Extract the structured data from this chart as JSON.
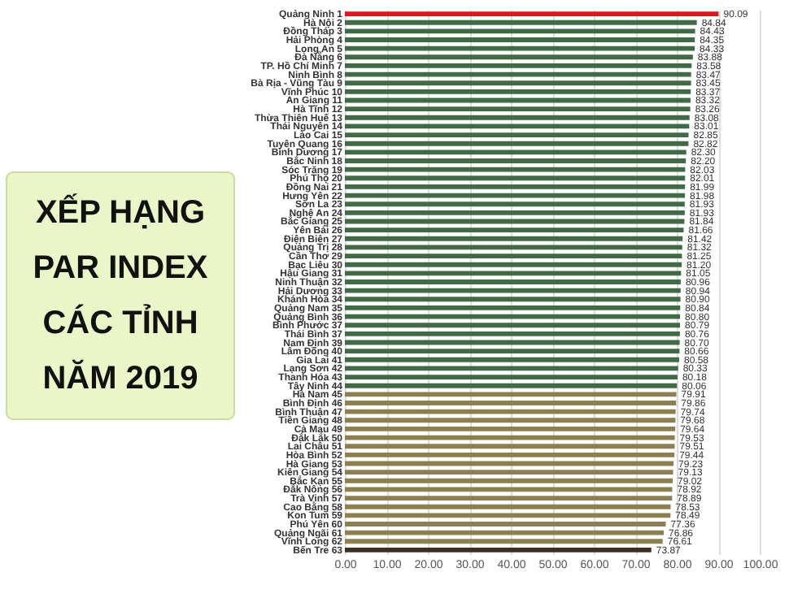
{
  "chart_data": {
    "type": "bar",
    "orientation": "horizontal",
    "title": "XẾP HẠNG\nPAR INDEX\nCÁC TỈNH\nNĂM 2019",
    "categories": [
      "Quảng Ninh 1",
      "Hà Nội 2",
      "Đồng Tháp 3",
      "Hải Phòng 4",
      "Long An 5",
      "Đà Nẵng 6",
      "TP. Hồ Chí Minh 7",
      "Ninh Bình 8",
      "Bà Rịa - Vũng Tàu 9",
      "Vĩnh Phúc 10",
      "An Giang 11",
      "Hà Tĩnh 12",
      "Thừa Thiên Huế 13",
      "Thái Nguyên 14",
      "Lào Cai 15",
      "Tuyên Quang 16",
      "Bình Dương 17",
      "Bắc Ninh 18",
      "Sóc Trăng 19",
      "Phú Thọ 20",
      "Đồng Nai 21",
      "Hưng Yên 22",
      "Sơn La 23",
      "Nghệ An 24",
      "Bắc Giang 25",
      "Yên Bái 26",
      "Điện Biên 27",
      "Quảng Trị 28",
      "Cần Thơ 29",
      "Bạc Liêu 30",
      "Hậu Giang 31",
      "Ninh Thuận 32",
      "Hải Dương 33",
      "Khánh Hòa 34",
      "Quảng Nam 35",
      "Quảng Bình 36",
      "Bình Phước 37",
      "Thái Bình 37",
      "Nam Định 39",
      "Lâm Đồng 40",
      "Gia Lai 41",
      "Lạng Sơn 42",
      "Thanh Hóa 43",
      "Tây Ninh 44",
      "Hà Nam 45",
      "Bình Định 46",
      "Bình Thuận 47",
      "Tiền Giang 48",
      "Cà Mau 49",
      "Đắk Lắk 50",
      "Lai Châu 51",
      "Hòa Bình 52",
      "Hà Giang 53",
      "Kiên Giang 54",
      "Bắc Kạn 55",
      "Đắk Nông 56",
      "Trà Vinh 57",
      "Cao Bằng 58",
      "Kon Tum 59",
      "Phú Yên 60",
      "Quảng Ngãi 61",
      "Vĩnh Long 62",
      "Bến Tre 63"
    ],
    "values": [
      90.09,
      84.84,
      84.43,
      84.35,
      84.33,
      83.88,
      83.58,
      83.47,
      83.45,
      83.37,
      83.32,
      83.26,
      83.08,
      83.01,
      82.85,
      82.82,
      82.3,
      82.2,
      82.03,
      82.01,
      81.99,
      81.98,
      81.93,
      81.93,
      81.84,
      81.66,
      81.42,
      81.32,
      81.25,
      81.2,
      81.05,
      80.96,
      80.94,
      80.9,
      80.84,
      80.8,
      80.79,
      80.76,
      80.7,
      80.66,
      80.58,
      80.33,
      80.18,
      80.06,
      79.91,
      79.86,
      79.74,
      79.68,
      79.64,
      79.53,
      79.51,
      79.44,
      79.23,
      79.13,
      79.02,
      78.92,
      78.89,
      78.53,
      78.49,
      77.36,
      76.86,
      76.61,
      73.87
    ],
    "colors": [
      "#e8131a",
      "#3f6b45",
      "#3f6b45",
      "#3f6b45",
      "#3f6b45",
      "#3f6b45",
      "#3f6b45",
      "#3f6b45",
      "#3f6b45",
      "#3f6b45",
      "#3f6b45",
      "#3f6b45",
      "#3f6b45",
      "#3f6b45",
      "#3f6b45",
      "#3f6b45",
      "#3f6b45",
      "#3f6b45",
      "#3f6b45",
      "#3f6b45",
      "#3f6b45",
      "#3f6b45",
      "#3f6b45",
      "#3f6b45",
      "#3f6b45",
      "#3f6b45",
      "#3f6b45",
      "#3f6b45",
      "#3f6b45",
      "#3f6b45",
      "#3f6b45",
      "#3f6b45",
      "#3f6b45",
      "#3f6b45",
      "#3f6b45",
      "#3f6b45",
      "#3f6b45",
      "#3f6b45",
      "#3f6b45",
      "#3f6b45",
      "#3f6b45",
      "#3f6b45",
      "#3f6b45",
      "#3f6b45",
      "#8c8050",
      "#8c8050",
      "#8c8050",
      "#8c8050",
      "#8c8050",
      "#8c8050",
      "#8c8050",
      "#8c8050",
      "#8c8050",
      "#8c8050",
      "#8c8050",
      "#8c8050",
      "#8c8050",
      "#8c8050",
      "#8c8050",
      "#8c8050",
      "#8c8050",
      "#8c8050",
      "#3a2f22"
    ],
    "xlim": [
      0,
      100
    ],
    "xticks": [
      {
        "value": 0,
        "label": "0.00"
      },
      {
        "value": 10,
        "label": "10.00"
      },
      {
        "value": 20,
        "label": "20.00"
      },
      {
        "value": 30,
        "label": "30.00"
      },
      {
        "value": 40,
        "label": "40.00"
      },
      {
        "value": 50,
        "label": "50.00"
      },
      {
        "value": 60,
        "label": "60.00"
      },
      {
        "value": 70,
        "label": "70.00"
      },
      {
        "value": 80,
        "label": "80.00"
      },
      {
        "value": 90,
        "label": "90.00"
      },
      {
        "value": 100,
        "label": "100.00"
      }
    ],
    "grid": "x",
    "value_labels": [
      "90.09",
      "84.84",
      "84.43",
      "84.35",
      "84.33",
      "83.88",
      "83.58",
      "83.47",
      "83.45",
      "83.37",
      "83.32",
      "83.26",
      "83.08",
      "83.01",
      "82.85",
      "82.82",
      "82.30",
      "82.20",
      "82.03",
      "82.01",
      "81.99",
      "81.98",
      "81.93",
      "81.93",
      "81.84",
      "81.66",
      "81.42",
      "81.32",
      "81.25",
      "81.20",
      "81.05",
      "80.96",
      "80.94",
      "80.90",
      "80.84",
      "80.80",
      "80.79",
      "80.76",
      "80.70",
      "80.66",
      "80.58",
      "80.33",
      "80.18",
      "80.06",
      "79.91",
      "79.86",
      "79.74",
      "79.68",
      "79.64",
      "79.53",
      "79.51",
      "79.44",
      "79.23",
      "79.13",
      "79.02",
      "78.92",
      "78.89",
      "78.53",
      "78.49",
      "77.36",
      "76.86",
      "76.61",
      "73.87"
    ]
  }
}
